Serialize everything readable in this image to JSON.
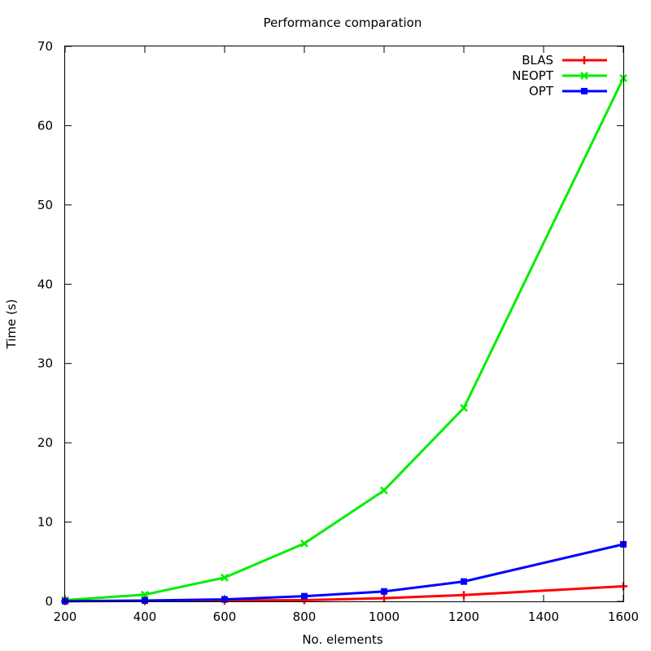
{
  "chart_data": {
    "type": "line",
    "title": "Performance comparation",
    "xlabel": "No. elements",
    "ylabel": "Time (s)",
    "xlim": [
      200,
      1600
    ],
    "ylim": [
      0,
      70
    ],
    "x_ticks": [
      200,
      400,
      600,
      800,
      1000,
      1200,
      1400,
      1600
    ],
    "y_ticks": [
      0,
      10,
      20,
      30,
      40,
      50,
      60,
      70
    ],
    "grid": false,
    "legend_position": "top-right",
    "x": [
      200,
      400,
      600,
      800,
      1000,
      1200,
      1600
    ],
    "series": [
      {
        "name": "BLAS",
        "color": "#ff0000",
        "marker": "plus",
        "values": [
          0.03,
          0.05,
          0.1,
          0.15,
          0.4,
          0.8,
          1.9
        ]
      },
      {
        "name": "NEOPT",
        "color": "#00ee00",
        "marker": "cross",
        "values": [
          0.15,
          0.85,
          3.0,
          7.3,
          14.0,
          24.4,
          66.0
        ]
      },
      {
        "name": "OPT",
        "color": "#0000ff",
        "marker": "square",
        "values": [
          0.02,
          0.1,
          0.25,
          0.65,
          1.25,
          2.5,
          7.2
        ]
      }
    ]
  }
}
